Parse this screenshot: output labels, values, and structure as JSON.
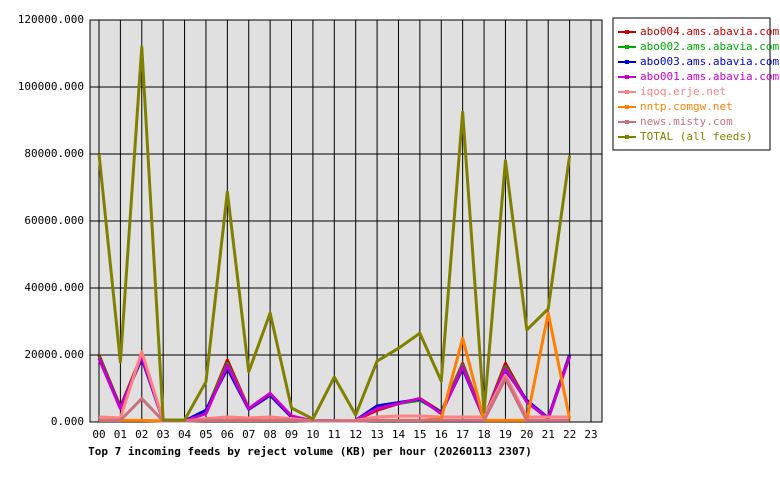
{
  "chart_data": {
    "type": "line",
    "title": "Top 7 incoming feeds by reject volume (KB) per hour (20260113 2307)",
    "categories": [
      "00",
      "01",
      "02",
      "03",
      "04",
      "05",
      "06",
      "07",
      "08",
      "09",
      "10",
      "11",
      "12",
      "13",
      "14",
      "15",
      "16",
      "17",
      "18",
      "19",
      "20",
      "21",
      "22",
      "23"
    ],
    "series": [
      {
        "name": "abo004.ams.abavia.com",
        "color": "#cc0000",
        "values": [
          20000,
          4500,
          20000,
          500,
          300,
          3000,
          18500,
          4000,
          8500,
          1500,
          300,
          400,
          500,
          3500,
          5500,
          7000,
          3000,
          17500,
          1000,
          17500,
          6000,
          1000,
          20000,
          null
        ]
      },
      {
        "name": "abo002.ams.abavia.com",
        "color": "#00aa00",
        "values": [
          19500,
          4300,
          19500,
          500,
          300,
          3200,
          17500,
          4000,
          8000,
          1500,
          300,
          400,
          500,
          4500,
          5500,
          6500,
          3000,
          17000,
          1000,
          16500,
          6000,
          1000,
          19500,
          null
        ]
      },
      {
        "name": "abo003.ams.abavia.com",
        "color": "#0000cc",
        "values": [
          19000,
          4200,
          19000,
          500,
          300,
          3500,
          16000,
          3800,
          8000,
          1500,
          300,
          400,
          500,
          4800,
          5800,
          6800,
          2800,
          16000,
          1000,
          15500,
          6500,
          1200,
          20000,
          null
        ]
      },
      {
        "name": "abo001.ams.abavia.com",
        "color": "#cc00cc",
        "values": [
          19000,
          4000,
          19500,
          500,
          300,
          2500,
          17000,
          4000,
          8500,
          1800,
          300,
          400,
          500,
          4000,
          5500,
          7000,
          2500,
          16500,
          1000,
          16000,
          6000,
          1000,
          19500,
          null
        ]
      },
      {
        "name": "iqoq.erje.net",
        "color": "#ff8080",
        "values": [
          1500,
          1200,
          21000,
          500,
          300,
          1000,
          1500,
          1200,
          1500,
          1000,
          300,
          400,
          500,
          1500,
          1800,
          1800,
          1500,
          1500,
          1500,
          14000,
          1500,
          1500,
          1500,
          null
        ]
      },
      {
        "name": "nntp.comgw.net",
        "color": "#ff8000",
        "values": [
          500,
          500,
          500,
          300,
          300,
          500,
          500,
          500,
          500,
          500,
          300,
          300,
          300,
          500,
          500,
          500,
          1000,
          25000,
          500,
          500,
          500,
          32500,
          1000,
          null
        ]
      },
      {
        "name": "news.misty.com",
        "color": "#cc7080",
        "values": [
          500,
          500,
          7000,
          300,
          300,
          500,
          500,
          500,
          500,
          500,
          300,
          300,
          300,
          500,
          500,
          500,
          500,
          500,
          500,
          13000,
          500,
          500,
          500,
          null
        ]
      },
      {
        "name": "TOTAL (all feeds)",
        "color": "#808000",
        "values": [
          80000,
          17900,
          112000,
          600,
          600,
          12000,
          68700,
          15000,
          32500,
          4200,
          900,
          13400,
          2100,
          18200,
          22000,
          26500,
          12200,
          92500,
          3000,
          78000,
          27500,
          33800,
          79500,
          null
        ]
      }
    ],
    "ylim": [
      0,
      120000
    ],
    "yticks": [
      {
        "value": 0,
        "label": "0.000"
      },
      {
        "value": 20000,
        "label": "20000.000"
      },
      {
        "value": 40000,
        "label": "40000.000"
      },
      {
        "value": 60000,
        "label": "60000.000"
      },
      {
        "value": 80000,
        "label": "80000.000"
      },
      {
        "value": 100000,
        "label": "100000.000"
      },
      {
        "value": 120000,
        "label": "120000.000"
      }
    ],
    "grid": true
  }
}
